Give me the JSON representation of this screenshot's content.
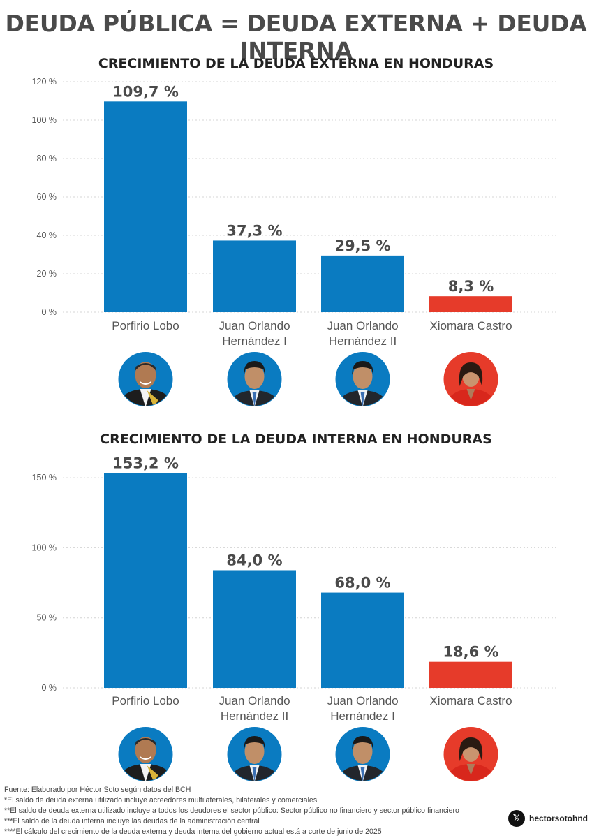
{
  "header": {
    "title": "DEUDA PÚBLICA = DEUDA EXTERNA + DEUDA INTERNA"
  },
  "colors": {
    "bar_blue": "#0a7bc1",
    "bar_red": "#e63b2a",
    "text_dark": "#4a4a4a"
  },
  "chart_data": [
    {
      "type": "bar",
      "title": "CRECIMIENTO DE LA DEUDA EXTERNA EN HONDURAS",
      "categories": [
        "Porfirio Lobo",
        "Juan Orlando Hernández I",
        "Juan Orlando Hernández II",
        "Xiomara Castro"
      ],
      "category_lines": [
        [
          "Porfirio Lobo"
        ],
        [
          "Juan Orlando",
          "Hernández I"
        ],
        [
          "Juan Orlando",
          "Hernández II"
        ],
        [
          "Xiomara Castro"
        ]
      ],
      "values": [
        109.7,
        37.3,
        29.5,
        8.3
      ],
      "value_labels": [
        "109,7 %",
        "37,3 %",
        "29,5 %",
        "8,3 %"
      ],
      "bar_colors": [
        "#0a7bc1",
        "#0a7bc1",
        "#0a7bc1",
        "#e63b2a"
      ],
      "ylim": [
        0,
        120
      ],
      "yticks": [
        0,
        20,
        40,
        60,
        80,
        100,
        120
      ],
      "ytick_labels": [
        "0 %",
        "20 %",
        "40 %",
        "60 %",
        "80 %",
        "100 %",
        "120 %"
      ],
      "grid": true,
      "portraits": [
        "person-a",
        "person-b",
        "person-b",
        "person-c"
      ]
    },
    {
      "type": "bar",
      "title": "CRECIMIENTO DE LA DEUDA INTERNA EN HONDURAS",
      "categories": [
        "Porfirio Lobo",
        "Juan Orlando Hernández II",
        "Juan Orlando Hernández I",
        "Xiomara Castro"
      ],
      "category_lines": [
        [
          "Porfirio Lobo"
        ],
        [
          "Juan Orlando",
          "Hernández II"
        ],
        [
          "Juan Orlando",
          "Hernández I"
        ],
        [
          "Xiomara Castro"
        ]
      ],
      "values": [
        153.2,
        84.0,
        68.0,
        18.6
      ],
      "value_labels": [
        "153,2 %",
        "84,0 %",
        "68,0 %",
        "18,6 %"
      ],
      "bar_colors": [
        "#0a7bc1",
        "#0a7bc1",
        "#0a7bc1",
        "#e63b2a"
      ],
      "ylim": [
        0,
        160
      ],
      "yticks": [
        0,
        50,
        100,
        150
      ],
      "ytick_labels": [
        "0 %",
        "50 %",
        "100 %",
        "150 %"
      ],
      "grid": true,
      "portraits": [
        "person-a",
        "person-b",
        "person-b",
        "person-c"
      ]
    }
  ],
  "footnotes": [
    "Fuente: Elaborado por Héctor Soto según datos del BCH",
    "*El saldo de deuda externa utilizado incluye acreedores multilaterales, bilaterales y comerciales",
    "**El saldo de deuda externa utilizado incluye a todos los deudores el sector público: Sector público no financiero y sector público financiero",
    "***El saldo de la deuda interna incluye las deudas de la administración central",
    "****El cálculo del crecimiento de la deuda externa y deuda interna del gobierno actual está a corte de junio de 2025"
  ],
  "social": {
    "icon": "x-logo-icon",
    "handle": "hectorsotohnd"
  }
}
